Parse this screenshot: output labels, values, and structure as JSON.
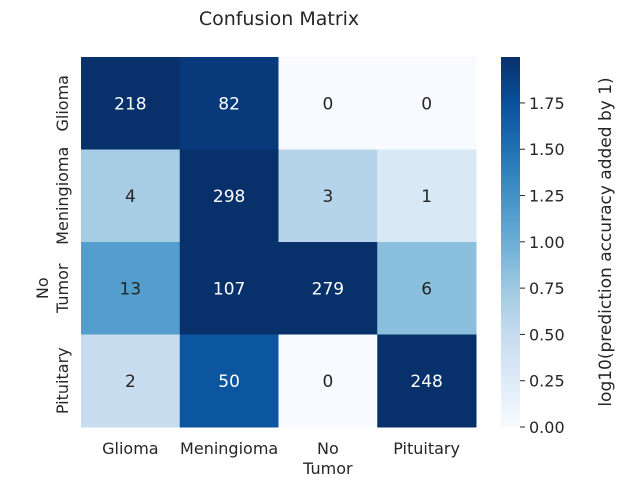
{
  "chart_data": {
    "type": "heatmap",
    "title": "Confusion Matrix",
    "xlabel": "",
    "ylabel": "",
    "x_tick_labels": [
      "Glioma",
      "Meningioma",
      "No\nTumor",
      "Pituitary"
    ],
    "y_tick_labels": [
      "Glioma",
      "Meningioma",
      "No\nTumor",
      "Pituitary"
    ],
    "values": [
      [
        218,
        82,
        0,
        0
      ],
      [
        4,
        298,
        3,
        1
      ],
      [
        13,
        107,
        279,
        6
      ],
      [
        2,
        50,
        0,
        248
      ]
    ],
    "color_transform": "log10(value + 1)",
    "colorbar": {
      "label": "log10(prediction accuracy added by 1)",
      "range": [
        0,
        1.9981
      ],
      "ticks": [
        "0.00",
        "0.25",
        "0.50",
        "0.75",
        "1.00",
        "1.25",
        "1.50",
        "1.75"
      ],
      "tick_values": [
        0,
        0.25,
        0.5,
        0.75,
        1.0,
        1.25,
        1.5,
        1.75
      ]
    },
    "colormap": "Blues",
    "colormap_stops": [
      "#f7fbff",
      "#deebf7",
      "#c6dbef",
      "#9ecae1",
      "#6baed6",
      "#4292c6",
      "#2171b5",
      "#08519c",
      "#08306b"
    ],
    "annotation_colors": {
      "light": "#ffffff",
      "dark": "#262626"
    }
  }
}
